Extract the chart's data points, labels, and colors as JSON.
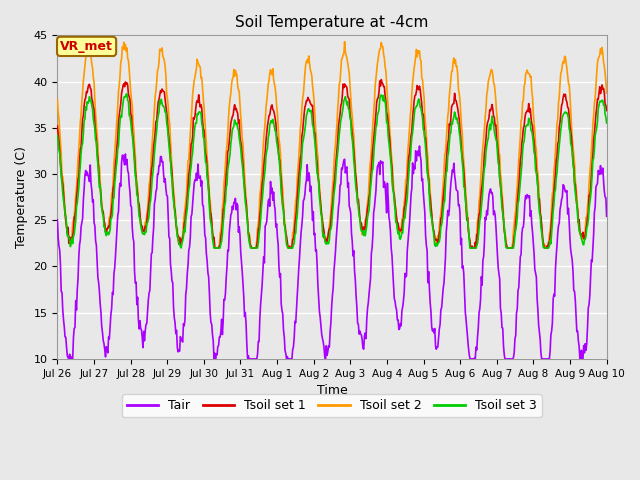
{
  "title": "Soil Temperature at -4cm",
  "xlabel": "Time",
  "ylabel": "Temperature (C)",
  "ylim": [
    10,
    45
  ],
  "background_color": "#e8e8e8",
  "plot_bg_color": "#e8e8e8",
  "grid_color": "white",
  "series": {
    "Tair": {
      "color": "#aa00ff",
      "lw": 1.2
    },
    "Tsoil set 1": {
      "color": "#dd0000",
      "lw": 1.2
    },
    "Tsoil set 2": {
      "color": "#ff9900",
      "lw": 1.2
    },
    "Tsoil set 3": {
      "color": "#00cc00",
      "lw": 1.2
    }
  },
  "xtick_labels": [
    "Jul 26",
    "Jul 27",
    "Jul 28",
    "Jul 29",
    "Jul 30",
    "Jul 31",
    "Aug 1",
    "Aug 2",
    "Aug 3",
    "Aug 4",
    "Aug 5",
    "Aug 6",
    "Aug 7",
    "Aug 8",
    "Aug 9",
    "Aug 10"
  ],
  "ytick_labels": [
    10,
    15,
    20,
    25,
    30,
    35,
    40,
    45
  ],
  "annotation_text": "VR_met",
  "annotation_color": "#cc0000",
  "annotation_bg": "#ffff99",
  "annotation_border": "#996600"
}
